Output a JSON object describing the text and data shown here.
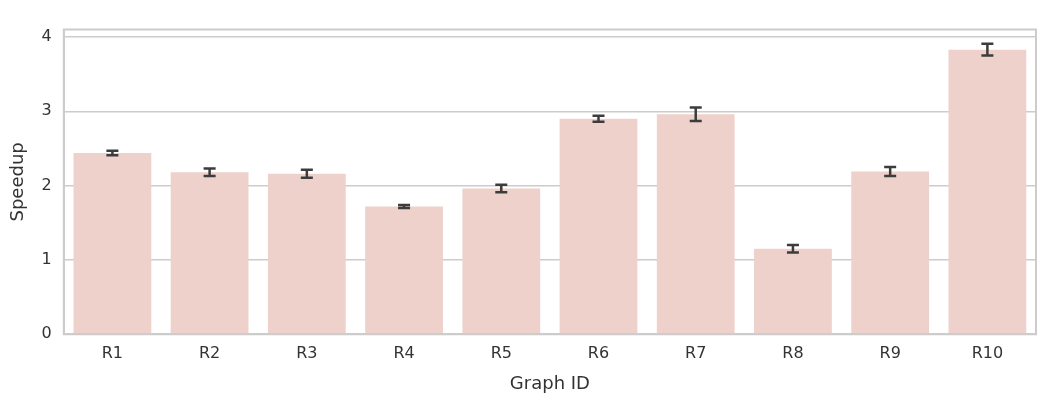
{
  "chart_data": {
    "type": "bar",
    "xlabel": "Graph ID",
    "ylabel": "Speedup",
    "categories": [
      "R1",
      "R2",
      "R3",
      "R4",
      "R5",
      "R6",
      "R7",
      "R8",
      "R9",
      "R10"
    ],
    "values": [
      2.44,
      2.18,
      2.16,
      1.72,
      1.96,
      2.9,
      2.96,
      1.15,
      2.19,
      3.83
    ],
    "errors": [
      0.03,
      0.05,
      0.055,
      0.02,
      0.05,
      0.04,
      0.09,
      0.05,
      0.06,
      0.08
    ],
    "color": "#edd1ca",
    "ylim": [
      0,
      4.1
    ],
    "yticks": [
      0,
      1,
      2,
      3,
      4
    ],
    "grid": "y",
    "legend": false
  }
}
